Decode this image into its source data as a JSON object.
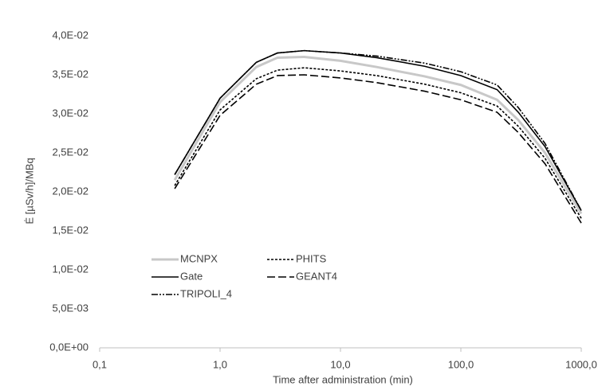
{
  "chart_data": {
    "type": "line",
    "xlabel": "Time after administration (min)",
    "ylabel": "Ė [µSv/h]/MBq",
    "x": [
      0.42,
      1,
      2,
      3,
      5,
      10,
      20,
      50,
      100,
      200,
      300,
      500,
      1000
    ],
    "xscale": "log",
    "xlim": [
      0.1,
      1000
    ],
    "xticks": [
      {
        "value": 0.1,
        "label": "0,1"
      },
      {
        "value": 1,
        "label": "1,0"
      },
      {
        "value": 10,
        "label": "10,0"
      },
      {
        "value": 100,
        "label": "100,0"
      },
      {
        "value": 1000,
        "label": "1000,0"
      }
    ],
    "ylim": [
      0,
      0.04
    ],
    "yticks": [
      {
        "value": 0,
        "label": "0,0E+00"
      },
      {
        "value": 0.005,
        "label": "5,0E-03"
      },
      {
        "value": 0.01,
        "label": "1,0E-02"
      },
      {
        "value": 0.015,
        "label": "1,5E-02"
      },
      {
        "value": 0.02,
        "label": "2,0E-02"
      },
      {
        "value": 0.025,
        "label": "2,5E-02"
      },
      {
        "value": 0.03,
        "label": "3,0E-02"
      },
      {
        "value": 0.035,
        "label": "3,5E-02"
      },
      {
        "value": 0.04,
        "label": "4,0E-02"
      }
    ],
    "grid": false,
    "legend": "lower-left",
    "series": [
      {
        "name": "MCNPX",
        "color": "#c8c8c8",
        "dash": "none",
        "values": [
          0.0215,
          0.0315,
          0.036,
          0.0372,
          0.0373,
          0.0368,
          0.036,
          0.0348,
          0.0337,
          0.0318,
          0.0292,
          0.025,
          0.0172
        ]
      },
      {
        "name": "PHITS",
        "color": "#000000",
        "dash": "3,2",
        "values": [
          0.0208,
          0.0305,
          0.0345,
          0.0356,
          0.0359,
          0.0355,
          0.0349,
          0.0338,
          0.0327,
          0.031,
          0.0284,
          0.0243,
          0.0166
        ]
      },
      {
        "name": "Gate",
        "color": "#000000",
        "dash": "none",
        "values": [
          0.0222,
          0.032,
          0.0366,
          0.0378,
          0.0381,
          0.0378,
          0.0372,
          0.0361,
          0.0349,
          0.0331,
          0.0302,
          0.0258,
          0.0176
        ]
      },
      {
        "name": "GEANT4",
        "color": "#000000",
        "dash": "10,4",
        "values": [
          0.0204,
          0.0298,
          0.0338,
          0.0349,
          0.035,
          0.0346,
          0.034,
          0.0329,
          0.0318,
          0.0302,
          0.0276,
          0.0236,
          0.016
        ]
      },
      {
        "name": "TRIPOLI_4",
        "color": "#000000",
        "dash": "8,2,2,2,2,2",
        "values": [
          0.0222,
          0.032,
          0.0366,
          0.0378,
          0.0381,
          0.0378,
          0.0374,
          0.0365,
          0.0354,
          0.0337,
          0.0308,
          0.0262,
          0.0176
        ]
      }
    ]
  }
}
